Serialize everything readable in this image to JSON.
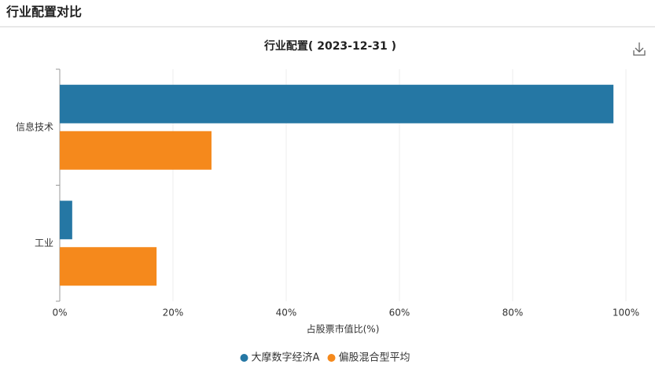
{
  "header": {
    "title": "行业配置对比"
  },
  "chart_data": {
    "type": "hbar",
    "title": "行业配置( 2023-12-31 )",
    "categories": [
      "信息技术",
      "工业"
    ],
    "series": [
      {
        "name": "大摩数字经济A",
        "color": "#2577a4",
        "values": [
          97.8,
          2.2
        ]
      },
      {
        "name": "偏股混合型平均",
        "color": "#f5891c",
        "values": [
          26.8,
          17.1
        ]
      }
    ],
    "xlim": [
      0,
      100
    ],
    "xticks": [
      {
        "value": 0,
        "label": "0%"
      },
      {
        "value": 20,
        "label": "20%"
      },
      {
        "value": 40,
        "label": "40%"
      },
      {
        "value": 60,
        "label": "60%"
      },
      {
        "value": 80,
        "label": "80%"
      },
      {
        "value": 100,
        "label": "100%"
      }
    ],
    "xlabel": "占股票市值比(%)",
    "grid": true
  }
}
